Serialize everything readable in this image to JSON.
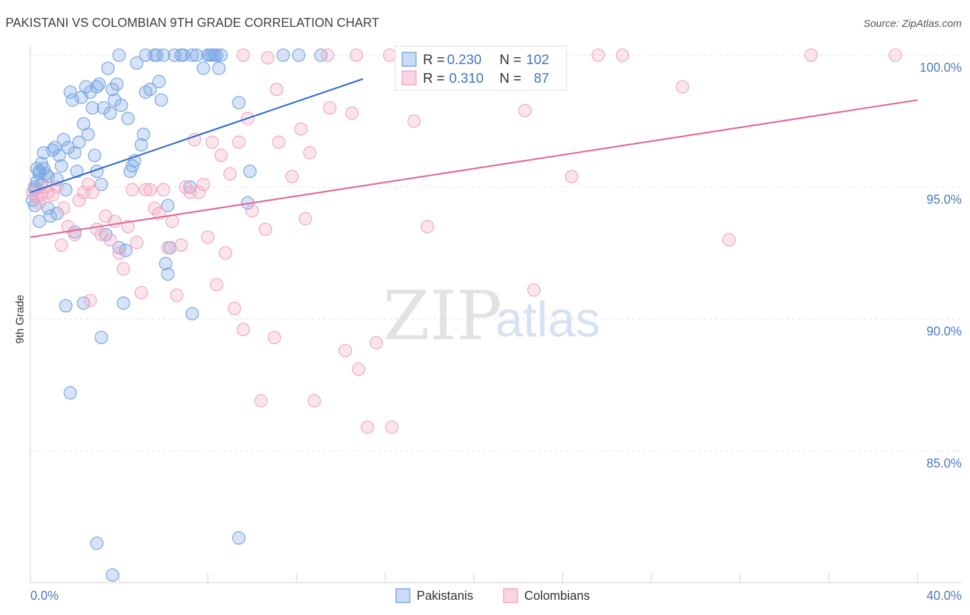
{
  "chart_data": {
    "type": "scatter",
    "title": "PAKISTANI VS COLOMBIAN 9TH GRADE CORRELATION CHART",
    "source": "Source: ZipAtlas.com",
    "xlabel": "",
    "ylabel": "9th Grade",
    "xlim": [
      0,
      40
    ],
    "ylim": [
      80,
      100.5
    ],
    "x_tick_labels": {
      "left": "0.0%",
      "right": "40.0%"
    },
    "y_ticks": [
      {
        "value": 85,
        "label": "85.0%"
      },
      {
        "value": 90,
        "label": "90.0%"
      },
      {
        "value": 95,
        "label": "95.0%"
      },
      {
        "value": 100,
        "label": "100.0%"
      }
    ],
    "watermark": {
      "zip": "ZIP",
      "atlas": "atlas"
    },
    "series": [
      {
        "name": "Pakistanis",
        "color": "#7aa7e6",
        "line_color": "#2f6ccc",
        "R": "0.230",
        "N": "102",
        "trend": {
          "x0": 0.0,
          "y0": 94.8,
          "x1": 15.0,
          "y1": 99.1
        },
        "points": [
          [
            0.1,
            94.5
          ],
          [
            0.2,
            95.0
          ],
          [
            0.2,
            94.9
          ],
          [
            0.3,
            95.7
          ],
          [
            0.3,
            95.2
          ],
          [
            0.4,
            93.7
          ],
          [
            0.4,
            95.6
          ],
          [
            0.5,
            95.1
          ],
          [
            0.6,
            95.7
          ],
          [
            0.6,
            96.3
          ],
          [
            0.7,
            95.5
          ],
          [
            0.8,
            94.2
          ],
          [
            0.9,
            93.9
          ],
          [
            1.0,
            96.4
          ],
          [
            1.1,
            96.5
          ],
          [
            1.2,
            95.3
          ],
          [
            1.3,
            96.2
          ],
          [
            1.4,
            95.8
          ],
          [
            1.5,
            96.8
          ],
          [
            1.6,
            94.9
          ],
          [
            1.7,
            96.5
          ],
          [
            1.8,
            98.6
          ],
          [
            1.9,
            98.3
          ],
          [
            2.0,
            93.3
          ],
          [
            2.1,
            95.6
          ],
          [
            2.2,
            96.7
          ],
          [
            2.3,
            98.4
          ],
          [
            2.4,
            97.4
          ],
          [
            2.5,
            98.8
          ],
          [
            2.6,
            97.0
          ],
          [
            2.7,
            98.6
          ],
          [
            2.8,
            98.0
          ],
          [
            2.9,
            96.2
          ],
          [
            3.0,
            95.6
          ],
          [
            3.1,
            98.9
          ],
          [
            3.2,
            95.1
          ],
          [
            3.3,
            98.0
          ],
          [
            3.4,
            93.2
          ],
          [
            3.5,
            99.5
          ],
          [
            3.6,
            97.8
          ],
          [
            3.7,
            98.7
          ],
          [
            3.8,
            98.3
          ],
          [
            3.9,
            98.9
          ],
          [
            4.0,
            92.7
          ],
          [
            4.1,
            98.1
          ],
          [
            4.3,
            92.6
          ],
          [
            4.4,
            97.6
          ],
          [
            4.5,
            95.6
          ],
          [
            4.6,
            95.8
          ],
          [
            4.7,
            96.0
          ],
          [
            4.8,
            99.7
          ],
          [
            5.0,
            96.6
          ],
          [
            5.1,
            97.0
          ],
          [
            5.2,
            98.6
          ],
          [
            5.4,
            98.7
          ],
          [
            5.6,
            100.0
          ],
          [
            5.8,
            99.0
          ],
          [
            5.9,
            98.3
          ],
          [
            6.1,
            92.1
          ],
          [
            6.2,
            94.3
          ],
          [
            6.3,
            92.7
          ],
          [
            6.5,
            100.0
          ],
          [
            6.8,
            100.0
          ],
          [
            7.2,
            95.0
          ],
          [
            7.5,
            100.0
          ],
          [
            7.8,
            99.5
          ],
          [
            8.0,
            100.0
          ],
          [
            8.1,
            100.0
          ],
          [
            8.2,
            100.0
          ],
          [
            8.4,
            100.0
          ],
          [
            8.5,
            99.5
          ],
          [
            1.6,
            90.5
          ],
          [
            2.4,
            90.6
          ],
          [
            3.2,
            89.3
          ],
          [
            4.2,
            90.6
          ],
          [
            7.3,
            90.2
          ],
          [
            6.2,
            91.7
          ],
          [
            1.8,
            87.2
          ],
          [
            3.0,
            81.5
          ],
          [
            9.4,
            81.7
          ],
          [
            3.7,
            80.3
          ],
          [
            9.4,
            98.2
          ],
          [
            9.9,
            95.6
          ],
          [
            9.8,
            94.4
          ],
          [
            11.4,
            100.0
          ],
          [
            12.1,
            100.0
          ],
          [
            13.1,
            100.0
          ],
          [
            0.2,
            94.3
          ],
          [
            0.4,
            95.5
          ],
          [
            1.2,
            94.0
          ],
          [
            4.0,
            100.0
          ],
          [
            5.2,
            100.0
          ],
          [
            5.7,
            100.0
          ],
          [
            6.0,
            100.0
          ],
          [
            6.9,
            100.0
          ],
          [
            7.3,
            100.0
          ],
          [
            8.3,
            100.0
          ],
          [
            8.6,
            100.0
          ],
          [
            0.8,
            95.4
          ],
          [
            3.0,
            98.8
          ],
          [
            2.0,
            96.3
          ],
          [
            0.5,
            95.9
          ]
        ]
      },
      {
        "name": "Colombians",
        "color": "#f2a9c1",
        "line_color": "#e0669a",
        "R": "0.310",
        "N": "87",
        "trend": {
          "x0": 0.0,
          "y0": 93.1,
          "x1": 40.0,
          "y1": 98.3
        },
        "points": [
          [
            0.1,
            94.8
          ],
          [
            0.3,
            94.6
          ],
          [
            0.5,
            94.7
          ],
          [
            0.7,
            95.0
          ],
          [
            0.8,
            94.8
          ],
          [
            1.0,
            94.7
          ],
          [
            1.2,
            95.0
          ],
          [
            1.4,
            92.8
          ],
          [
            1.5,
            94.2
          ],
          [
            1.7,
            93.5
          ],
          [
            2.0,
            93.2
          ],
          [
            2.2,
            94.5
          ],
          [
            2.4,
            94.8
          ],
          [
            2.6,
            95.1
          ],
          [
            2.8,
            94.8
          ],
          [
            3.0,
            93.4
          ],
          [
            3.2,
            93.2
          ],
          [
            3.4,
            93.9
          ],
          [
            3.6,
            93.0
          ],
          [
            3.8,
            93.7
          ],
          [
            4.0,
            92.5
          ],
          [
            4.2,
            91.9
          ],
          [
            4.4,
            93.5
          ],
          [
            4.6,
            94.9
          ],
          [
            4.8,
            92.9
          ],
          [
            5.0,
            91.0
          ],
          [
            5.2,
            94.9
          ],
          [
            5.4,
            94.9
          ],
          [
            5.6,
            94.2
          ],
          [
            5.8,
            94.0
          ],
          [
            6.0,
            94.9
          ],
          [
            6.2,
            92.7
          ],
          [
            6.4,
            93.7
          ],
          [
            6.6,
            90.9
          ],
          [
            6.8,
            92.8
          ],
          [
            7.0,
            95.0
          ],
          [
            7.2,
            94.8
          ],
          [
            7.4,
            96.8
          ],
          [
            7.6,
            94.8
          ],
          [
            7.8,
            95.1
          ],
          [
            8.0,
            93.1
          ],
          [
            8.2,
            96.7
          ],
          [
            8.4,
            91.3
          ],
          [
            8.6,
            96.2
          ],
          [
            8.8,
            92.5
          ],
          [
            9.0,
            95.5
          ],
          [
            9.2,
            90.4
          ],
          [
            9.4,
            96.7
          ],
          [
            9.6,
            89.6
          ],
          [
            9.8,
            97.6
          ],
          [
            10.0,
            94.1
          ],
          [
            10.4,
            86.9
          ],
          [
            10.6,
            93.4
          ],
          [
            11.0,
            89.3
          ],
          [
            11.2,
            96.7
          ],
          [
            11.8,
            95.4
          ],
          [
            12.2,
            97.2
          ],
          [
            12.4,
            93.8
          ],
          [
            12.6,
            96.3
          ],
          [
            12.8,
            86.9
          ],
          [
            13.5,
            98.0
          ],
          [
            14.2,
            88.8
          ],
          [
            14.5,
            97.8
          ],
          [
            14.8,
            88.1
          ],
          [
            15.2,
            85.9
          ],
          [
            15.6,
            89.1
          ],
          [
            16.3,
            85.9
          ],
          [
            17.3,
            97.5
          ],
          [
            17.9,
            93.5
          ],
          [
            18.6,
            100.0
          ],
          [
            22.3,
            97.9
          ],
          [
            22.7,
            91.1
          ],
          [
            24.4,
            95.4
          ],
          [
            25.6,
            100.0
          ],
          [
            26.7,
            100.0
          ],
          [
            29.4,
            98.8
          ],
          [
            31.5,
            93.0
          ],
          [
            35.2,
            100.0
          ],
          [
            39.0,
            100.0
          ],
          [
            10.7,
            99.9
          ],
          [
            11.1,
            98.7
          ],
          [
            13.4,
            100.0
          ],
          [
            14.7,
            100.0
          ],
          [
            16.2,
            100.0
          ],
          [
            0.4,
            94.4
          ],
          [
            9.6,
            100.0
          ],
          [
            2.7,
            90.7
          ]
        ]
      }
    ]
  },
  "legend": {
    "items": [
      {
        "label": "Pakistanis",
        "color": "#7aa7e6"
      },
      {
        "label": "Colombians",
        "color": "#f2a9c1"
      }
    ]
  },
  "stats": {
    "r_label": "R =",
    "n_label": "N ="
  }
}
